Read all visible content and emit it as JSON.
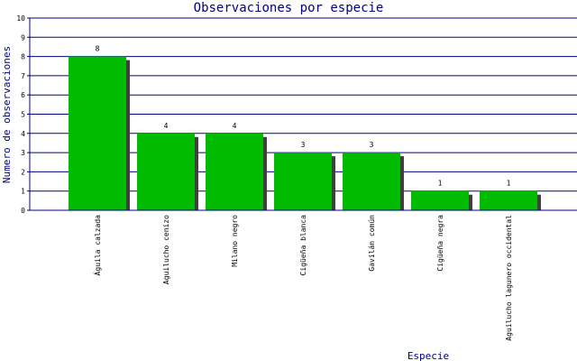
{
  "chart_data": {
    "type": "bar",
    "title": "Observaciones por especie",
    "xlabel": "Especie",
    "ylabel": "Numero de observaciones",
    "ylim": [
      0,
      10
    ],
    "yticks": [
      0,
      1,
      2,
      3,
      4,
      5,
      6,
      7,
      8,
      9,
      10
    ],
    "grid": true,
    "categories": [
      "Águila calzada",
      "Aguilucho cenizo",
      "Milano negro",
      "Cigüeña blanca",
      "Gavilán común",
      "Cigüeña negra",
      "Aguilucho lagunero occidental"
    ],
    "values": [
      8,
      4,
      4,
      3,
      3,
      1,
      1
    ],
    "colors": {
      "bar": "#00bb00",
      "bar_shadow": "#404040",
      "grid": "#000080",
      "axis": "#000080",
      "title": "#000080"
    }
  }
}
